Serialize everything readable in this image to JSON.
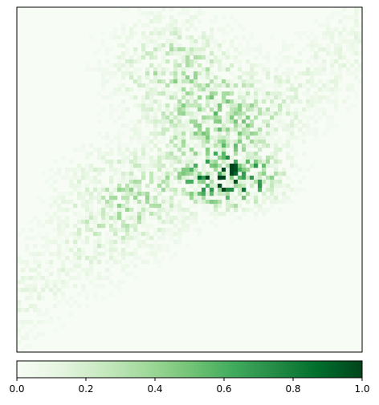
{
  "chart_data": {
    "type": "heatmap",
    "title": "",
    "xlabel": "",
    "ylabel": "",
    "axes_ticks_visible": false,
    "colormap": "Greens",
    "colormap_stops": [
      "#f7fcf5",
      "#e5f5e0",
      "#c7e9c0",
      "#a1d99b",
      "#74c476",
      "#41ab5d",
      "#238b45",
      "#006d2c",
      "#00441b"
    ],
    "colorbar": {
      "orientation": "horizontal",
      "placement": "bottom",
      "range": [
        0.0,
        1.0
      ],
      "ticks": [
        0.0,
        0.2,
        0.4,
        0.6,
        0.8,
        1.0
      ],
      "tick_labels": [
        "0.0",
        "0.2",
        "0.4",
        "0.6",
        "0.8",
        "1.0"
      ]
    },
    "grid": false,
    "hotspots": [
      {
        "region": "center-right",
        "x": 0.62,
        "y": 0.5,
        "peak": 1.0
      },
      {
        "region": "center",
        "x": 0.58,
        "y": 0.33,
        "peak": 0.35
      },
      {
        "region": "upper-center",
        "x": 0.45,
        "y": 0.17,
        "peak": 0.3
      },
      {
        "region": "center-left",
        "x": 0.3,
        "y": 0.55,
        "peak": 0.25
      }
    ]
  }
}
